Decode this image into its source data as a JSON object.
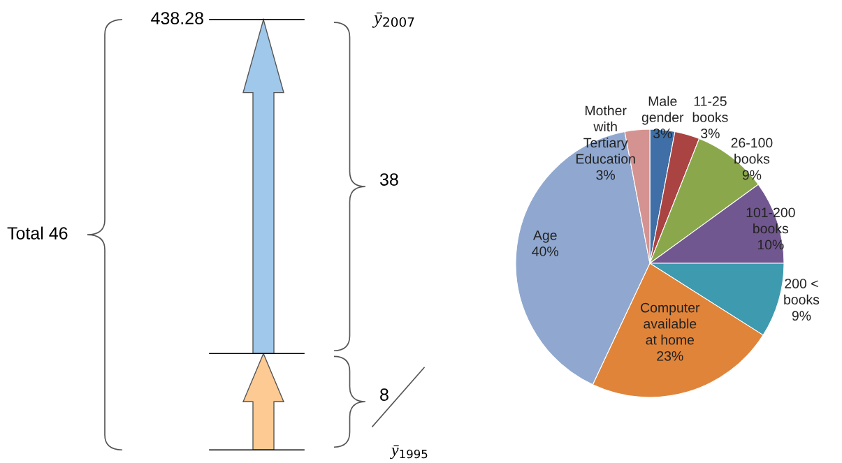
{
  "chart_data": [
    {
      "type": "other",
      "colors": [
        "#fdca93",
        "#9fc8eb"
      ],
      "annotations": [
        "438.28",
        "Total 46",
        "ȳ$_{2007}$",
        "ȳ$_{1995}$",
        "8",
        "38"
      ]
    },
    {
      "type": "pie",
      "categories": [
        "Male\ngender",
        "11-25\nbooks",
        "26-100\nbooks",
        "101-200\nbooks",
        "200 <\nbooks",
        "Computer\navailable\nat home",
        "Age",
        "Mother\nwith\nTertiary\nEducation"
      ],
      "values": [
        3,
        3,
        9,
        10,
        9,
        23,
        40,
        3
      ],
      "value_labels": [
        "3%",
        "3%",
        "9%",
        "10%",
        "9%",
        "23%",
        "40%",
        "3%"
      ],
      "colors": [
        "#3f6fa6",
        "#a94442",
        "#8aa84b",
        "#71578f",
        "#3e9aaf",
        "#e0843a",
        "#90a8cf",
        "#d49390"
      ]
    }
  ]
}
